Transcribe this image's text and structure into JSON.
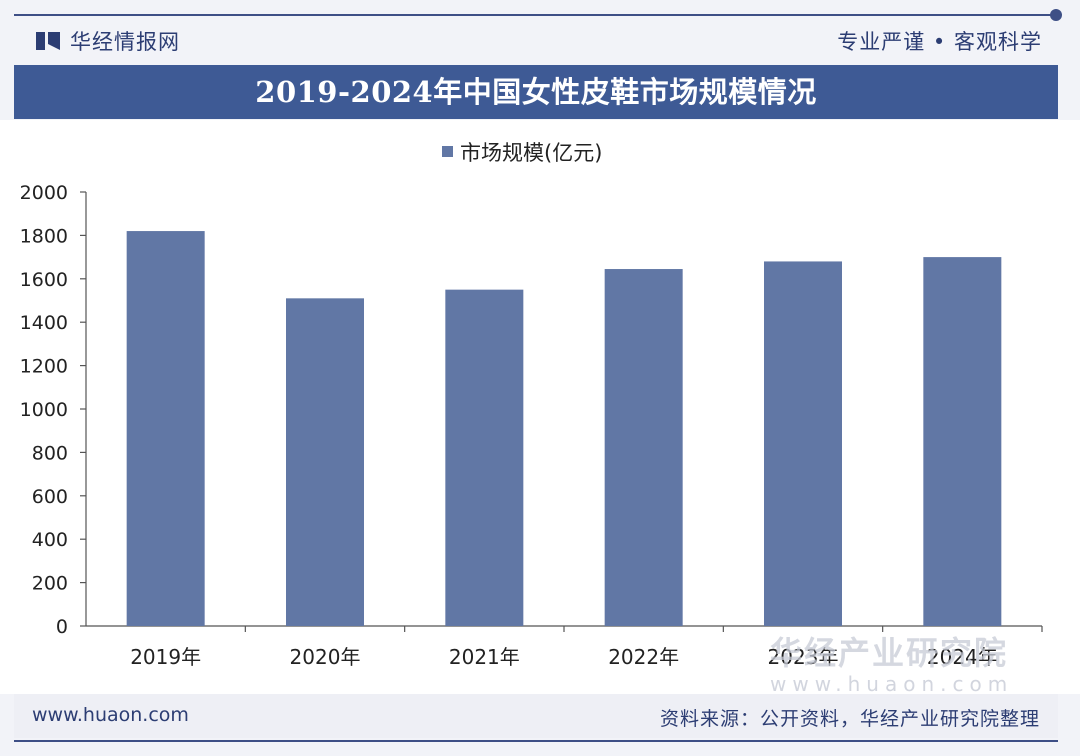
{
  "header": {
    "brand": "华经情报网",
    "slogan": "专业严谨 • 客观科学"
  },
  "footer": {
    "url": "www.huaon.com",
    "source": "资料来源：公开资料，华经产业研究院整理"
  },
  "watermark": {
    "text": "华经产业研究院",
    "url": "www.huaon.com"
  },
  "colors": {
    "bar": "#6177a5",
    "title_bg": "#3e5a95",
    "accent": "#3e4f86"
  },
  "chart_data": {
    "type": "bar",
    "title": "2019-2024年中国女性皮鞋市场规模情况",
    "legend": "市场规模(亿元)",
    "legend_position": "top-center",
    "categories": [
      "2019年",
      "2020年",
      "2021年",
      "2022年",
      "2023年",
      "2024年"
    ],
    "values": [
      1820,
      1510,
      1550,
      1645,
      1680,
      1700
    ],
    "yticks": [
      0,
      200,
      400,
      600,
      800,
      1000,
      1200,
      1400,
      1600,
      1800,
      2000
    ],
    "ylim": [
      0,
      2000
    ],
    "xlabel": "",
    "ylabel": "",
    "grid": false
  }
}
